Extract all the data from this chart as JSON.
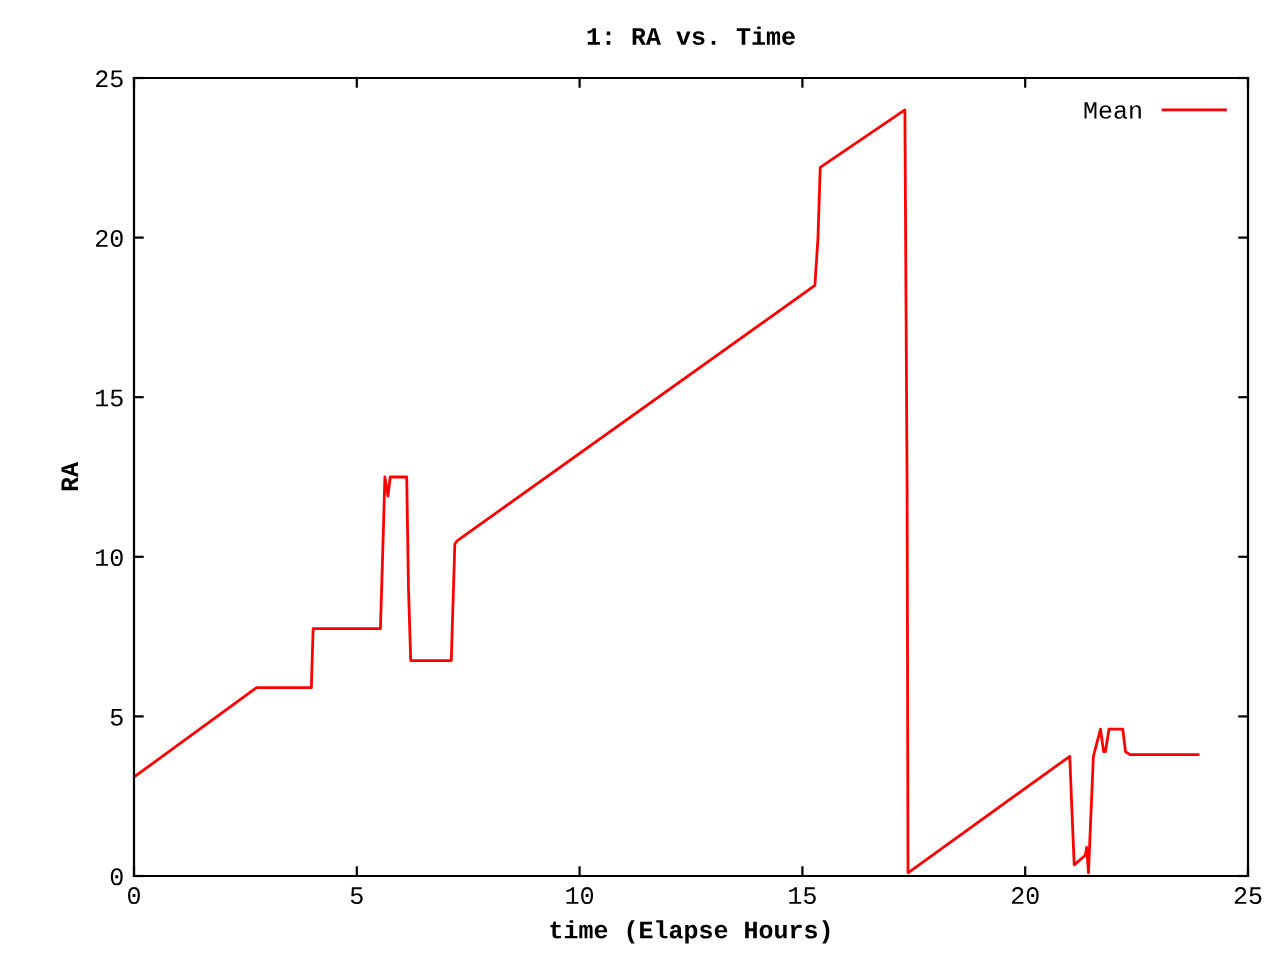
{
  "chart_data": {
    "type": "line",
    "title": "1: RA vs. Time",
    "xlabel": "time (Elapse Hours)",
    "ylabel": "RA",
    "series": [
      {
        "name": "Mean",
        "color": "#ff0000",
        "x": [
          0,
          2.75,
          3.98,
          4.02,
          5.53,
          5.6,
          5.63,
          5.7,
          5.75,
          5.85,
          6.12,
          6.16,
          6.21,
          7.12,
          7.2,
          7.25,
          15.28,
          15.35,
          15.4,
          17.3,
          17.35,
          17.37,
          21.0,
          21.05,
          21.1,
          21.35,
          21.38,
          21.42,
          21.53,
          21.69,
          21.76,
          21.8,
          21.88,
          21.98,
          22.19,
          22.25,
          22.35,
          23.88
        ],
        "values": [
          3.1,
          5.9,
          5.9,
          7.75,
          7.75,
          11.0,
          12.5,
          11.9,
          12.5,
          12.5,
          12.5,
          9.0,
          6.75,
          6.75,
          10.4,
          10.5,
          18.5,
          20.0,
          22.2,
          24.0,
          12.0,
          0.1,
          3.75,
          2.0,
          0.35,
          0.65,
          0.9,
          0.1,
          3.75,
          4.6,
          3.9,
          3.9,
          4.6,
          4.6,
          4.6,
          3.9,
          3.8,
          3.8
        ]
      }
    ],
    "xlim": [
      0,
      25
    ],
    "ylim": [
      0,
      25
    ],
    "xticks": [
      0,
      5,
      10,
      15,
      20,
      25
    ],
    "yticks": [
      0,
      5,
      10,
      15,
      20,
      25
    ],
    "grid": false,
    "legend": "top right",
    "marker": "none",
    "line_style": "solid"
  }
}
